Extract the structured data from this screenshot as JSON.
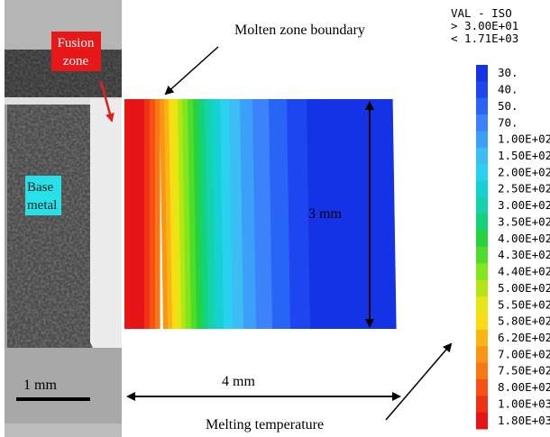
{
  "figure": {
    "micrograph": {
      "fusion_zone_lines": [
        "Fusion",
        "zone"
      ],
      "base_metal_lines": [
        "Base",
        "metal"
      ],
      "scale_bar": "1 mm"
    },
    "annotations": {
      "molten_boundary": "Molten zone boundary",
      "melting_temperature": "Melting temperature",
      "height": "3 mm",
      "width": "4 mm"
    },
    "legend": {
      "header": [
        "VAL - ISO",
        "> 3.00E+01",
        "< 1.71E+03"
      ],
      "items": [
        {
          "label": "30.",
          "color": "#1432e6"
        },
        {
          "label": "40.",
          "color": "#1e46f0"
        },
        {
          "label": "50.",
          "color": "#2864f5"
        },
        {
          "label": "70.",
          "color": "#3c82fa"
        },
        {
          "label": "1.00E+02",
          "color": "#3ca0fa"
        },
        {
          "label": "1.50E+02",
          "color": "#3cbef5"
        },
        {
          "label": "2.00E+02",
          "color": "#28d2f0"
        },
        {
          "label": "2.50E+02",
          "color": "#14d2d2"
        },
        {
          "label": "3.00E+02",
          "color": "#14d2aa"
        },
        {
          "label": "3.50E+02",
          "color": "#14d278"
        },
        {
          "label": "4.00E+02",
          "color": "#28d23c"
        },
        {
          "label": "4.30E+02",
          "color": "#50dc28"
        },
        {
          "label": "4.40E+02",
          "color": "#82e61e"
        },
        {
          "label": "5.00E+02",
          "color": "#b4e614"
        },
        {
          "label": "5.50E+02",
          "color": "#e6e614"
        },
        {
          "label": "5.80E+02",
          "color": "#fadc14"
        },
        {
          "label": "6.20E+02",
          "color": "#fab414"
        },
        {
          "label": "7.00E+02",
          "color": "#fa9614"
        },
        {
          "label": "7.50E+02",
          "color": "#fa7814"
        },
        {
          "label": "8.00E+02",
          "color": "#fa5014"
        },
        {
          "label": "1.00E+03",
          "color": "#f03214"
        },
        {
          "label": "1.80E+03",
          "color": "#e61414"
        }
      ]
    }
  }
}
